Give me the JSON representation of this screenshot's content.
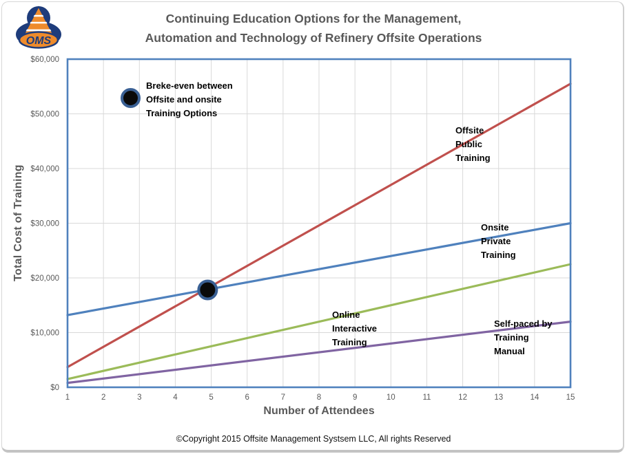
{
  "logo": {
    "text": "OMS"
  },
  "chart_data": {
    "type": "line",
    "title": "Continuing Education Options for the Management,\nAutomation and Technology of Refinery Offsite Operations",
    "xlabel": "Number of Attendees",
    "ylabel": "Total Cost of Training",
    "xlim": [
      1,
      15
    ],
    "ylim": [
      0,
      60000
    ],
    "grid": true,
    "x_ticks": [
      1,
      2,
      3,
      4,
      5,
      6,
      7,
      8,
      9,
      10,
      11,
      12,
      13,
      14,
      15
    ],
    "y_ticks": [
      {
        "value": 0,
        "label": "$0"
      },
      {
        "value": 10000,
        "label": "$10,000"
      },
      {
        "value": 20000,
        "label": "$20,000"
      },
      {
        "value": 30000,
        "label": "$30,000"
      },
      {
        "value": 40000,
        "label": "$40,000"
      },
      {
        "value": 50000,
        "label": "$50,000"
      },
      {
        "value": 60000,
        "label": "$60,000"
      }
    ],
    "series": [
      {
        "name": "Offsite Public Training",
        "color": "#C0504D",
        "points": [
          [
            1,
            3700
          ],
          [
            15,
            55500
          ]
        ]
      },
      {
        "name": "Onsite Private Training",
        "color": "#4F81BD",
        "points": [
          [
            1,
            13200
          ],
          [
            15,
            30000
          ]
        ]
      },
      {
        "name": "Online Interactive Training",
        "color": "#9BBB59",
        "points": [
          [
            1,
            1500
          ],
          [
            15,
            22500
          ]
        ]
      },
      {
        "name": "Self-paced by Training Manual",
        "color": "#8064A2",
        "points": [
          [
            1,
            800
          ],
          [
            15,
            12000
          ]
        ]
      }
    ],
    "breakeven_marker": {
      "x": 4.9,
      "y": 17800
    },
    "colors": {
      "plot_border": "#4F81BD",
      "gridline": "#D9D9D9",
      "tick_text": "#595959",
      "marker_fill": "#0A0A0A",
      "marker_ring": "#3A6094"
    }
  },
  "annotations": {
    "breakeven": "Breke-even between\nOffsite and onsite\nTraining Options",
    "series_labels": [
      {
        "text": "Offsite\nPublic\nTraining"
      },
      {
        "text": "Onsite\nPrivate\nTraining"
      },
      {
        "text": "Online\nInteractive\nTraining"
      },
      {
        "text": "Self-paced by\nTraining\nManual"
      }
    ]
  },
  "footer": {
    "copyright": "©Copyright 2015 Offsite Management Systsem LLC, All rights Reserved"
  }
}
